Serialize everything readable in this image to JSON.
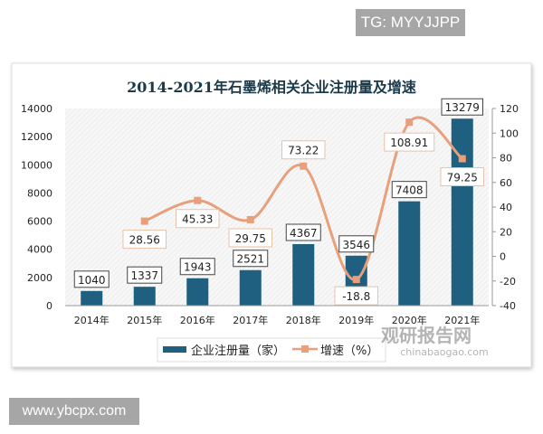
{
  "watermark_top": "TG: MYYJJPP",
  "watermark_bottom": "www.ybcpx.com",
  "source_logo": {
    "name": "观研报告网",
    "url_text": "chinabaogao.com"
  },
  "chart_data": {
    "type": "bar+line",
    "title": "2014-2021年石墨烯相关企业注册量及增速",
    "categories": [
      "2014年",
      "2015年",
      "2016年",
      "2017年",
      "2018年",
      "2019年",
      "2020年",
      "2021年"
    ],
    "series": [
      {
        "name": "企业注册量（家）",
        "type": "bar",
        "axis": "left",
        "color": "#1f5f7f",
        "values": [
          1040,
          1337,
          1943,
          2521,
          4367,
          3546,
          7408,
          13279
        ],
        "labels": [
          "1040",
          "1337",
          "1943",
          "2521",
          "4367",
          "3546",
          "7408",
          "13279"
        ]
      },
      {
        "name": "增速（%）",
        "type": "line",
        "axis": "right",
        "color": "#e8a07c",
        "values": [
          null,
          28.56,
          45.33,
          29.75,
          73.22,
          -18.8,
          108.91,
          79.25
        ],
        "labels": [
          "",
          "28.56",
          "45.33",
          "29.75",
          "73.22",
          "-18.8",
          "108.91",
          "79.25"
        ]
      }
    ],
    "left_axis": {
      "ylim": [
        0,
        14000
      ],
      "ticks": [
        "0",
        "2000",
        "4000",
        "6000",
        "8000",
        "10000",
        "12000",
        "14000"
      ]
    },
    "right_axis": {
      "ylim": [
        -40,
        120
      ],
      "ticks": [
        "-40",
        "-20",
        "0",
        "20",
        "40",
        "60",
        "80",
        "100",
        "120"
      ]
    },
    "legend": "bottom",
    "grid": false
  }
}
